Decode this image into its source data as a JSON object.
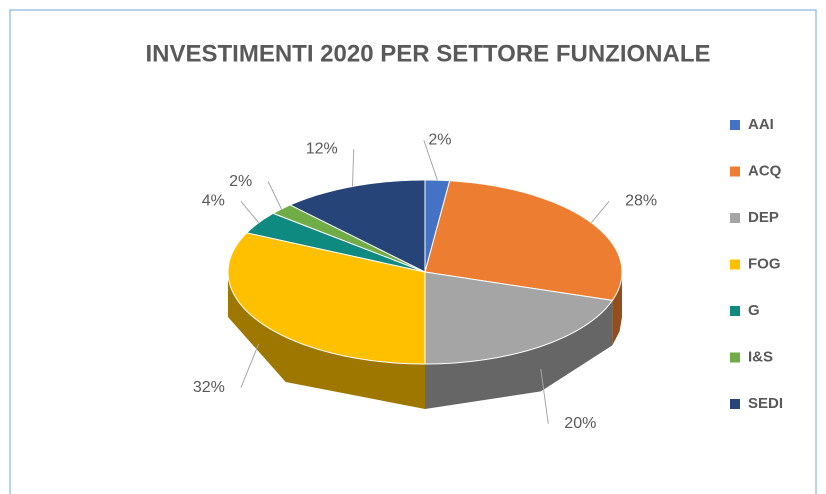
{
  "chart_data": {
    "type": "pie",
    "title": "INVESTIMENTI 2020 PER SETTORE FUNZIONALE",
    "categories": [
      "AAI",
      "ACQ",
      "DEP",
      "FOG",
      "G",
      "I&S",
      "SEDI"
    ],
    "values": [
      2,
      28,
      20,
      32,
      4,
      2,
      12
    ],
    "value_labels": [
      "2%",
      "28%",
      "20%",
      "32%",
      "4%",
      "2%",
      "12%"
    ],
    "colors": [
      "#4472c4",
      "#ed7d31",
      "#a5a5a5",
      "#ffc000",
      "#0e8a80",
      "#70ad47",
      "#264478"
    ],
    "legend": "right"
  }
}
